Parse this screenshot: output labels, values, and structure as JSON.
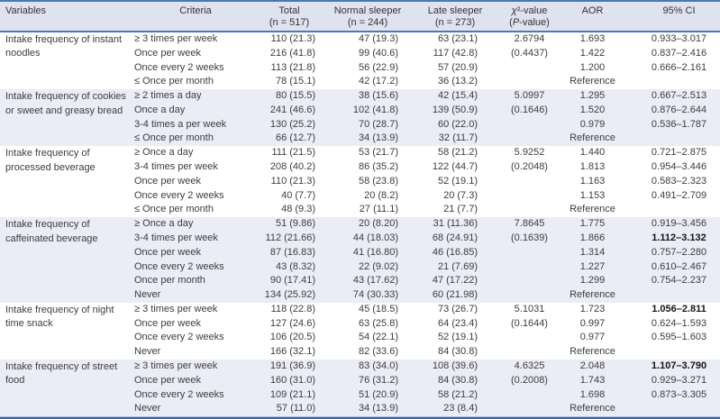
{
  "colors": {
    "accent": "#4a79b8",
    "header_bg": "#dfe3f0",
    "band_bg": "#eaecf6"
  },
  "columns": [
    {
      "label": "Variables",
      "sub": ""
    },
    {
      "label": "Criteria",
      "sub": ""
    },
    {
      "label": "Total",
      "sub": "(n = 517)"
    },
    {
      "label": "Normal sleeper",
      "sub": "(n = 244)"
    },
    {
      "label": "Late sleeper",
      "sub": "(n = 273)"
    },
    {
      "label": "χ²-value",
      "sub": "(P-value)"
    },
    {
      "label": "AOR",
      "sub": ""
    },
    {
      "label": "95% CI",
      "sub": ""
    }
  ],
  "sections": [
    {
      "variable": "Intake frequency of instant noodles",
      "shaded": false,
      "chi2": "2.6794",
      "p_value": "(0.4437)",
      "rows": [
        {
          "criteria": "≥ 3 times per week",
          "total": "110 (21.3)",
          "normal": "47 (19.3)",
          "late": "63 (23.1)",
          "aor": "1.693",
          "ci": "0.933–3.017",
          "ci_bold": false
        },
        {
          "criteria": "Once per week",
          "total": "216 (41.8)",
          "normal": "99 (40.6)",
          "late": "117 (42.8)",
          "aor": "1.422",
          "ci": "0.837–2.416",
          "ci_bold": false
        },
        {
          "criteria": "Once every 2 weeks",
          "total": "113 (21.8)",
          "normal": "56 (22.9)",
          "late": "57 (20.9)",
          "aor": "1.200",
          "ci": "0.666–2.161",
          "ci_bold": false
        },
        {
          "criteria": "≤ Once per month",
          "total": "78 (15.1)",
          "normal": "42 (17.2)",
          "late": "36 (13.2)",
          "aor": "Reference",
          "ci": "",
          "ci_bold": false
        }
      ]
    },
    {
      "variable": "Intake frequency of cookies or sweet and greasy bread",
      "shaded": true,
      "chi2": "5.0997",
      "p_value": "(0.1646)",
      "rows": [
        {
          "criteria": "≥ 2 times a day",
          "total": "80 (15.5)",
          "normal": "38 (15.6)",
          "late": "42 (15.4)",
          "aor": "1.295",
          "ci": "0.667–2.513",
          "ci_bold": false
        },
        {
          "criteria": "Once a day",
          "total": "241 (46.6)",
          "normal": "102 (41.8)",
          "late": "139 (50.9)",
          "aor": "1.520",
          "ci": "0.876–2.644",
          "ci_bold": false
        },
        {
          "criteria": "3-4 times a per week",
          "total": "130 (25.2)",
          "normal": "70 (28.7)",
          "late": "60 (22.0)",
          "aor": "0.979",
          "ci": "0.536–1.787",
          "ci_bold": false
        },
        {
          "criteria": "≤ Once per month",
          "total": "66 (12.7)",
          "normal": "34 (13.9)",
          "late": "32 (11.7)",
          "aor": "Reference",
          "ci": "",
          "ci_bold": false
        }
      ]
    },
    {
      "variable": "Intake frequency of processed beverage",
      "shaded": false,
      "chi2": "5.9252",
      "p_value": "(0.2048)",
      "rows": [
        {
          "criteria": "≥ Once a day",
          "total": "111 (21.5)",
          "normal": "53 (21.7)",
          "late": "58 (21.2)",
          "aor": "1.440",
          "ci": "0.721–2.875",
          "ci_bold": false
        },
        {
          "criteria": "3-4 times per week",
          "total": "208 (40.2)",
          "normal": "86 (35.2)",
          "late": "122 (44.7)",
          "aor": "1.813",
          "ci": "0.954–3.446",
          "ci_bold": false
        },
        {
          "criteria": "Once per week",
          "total": "110 (21.3)",
          "normal": "58 (23.8)",
          "late": "52 (19.1)",
          "aor": "1.163",
          "ci": "0.583–2.323",
          "ci_bold": false
        },
        {
          "criteria": "Once every 2 weeks",
          "total": "40 (7.7)",
          "normal": "20 (8.2)",
          "late": "20 (7.3)",
          "aor": "1.153",
          "ci": "0.491–2.709",
          "ci_bold": false
        },
        {
          "criteria": "≤ Once per month",
          "total": "48 (9.3)",
          "normal": "27 (11.1)",
          "late": "21 (7.7)",
          "aor": "Reference",
          "ci": "",
          "ci_bold": false
        }
      ]
    },
    {
      "variable": "Intake frequency of caffeinated beverage",
      "shaded": true,
      "chi2": "7.8645",
      "p_value": "(0.1639)",
      "rows": [
        {
          "criteria": "≥ Once a day",
          "total": "51 (9.86)",
          "normal": "20 (8.20)",
          "late": "31 (11.36)",
          "aor": "1.775",
          "ci": "0.919–3.456",
          "ci_bold": false
        },
        {
          "criteria": "3-4 times per week",
          "total": "112 (21.66)",
          "normal": "44 (18.03)",
          "late": "68 (24.91)",
          "aor": "1.866",
          "ci": "1.112–3.132",
          "ci_bold": true
        },
        {
          "criteria": "Once per week",
          "total": "87 (16.83)",
          "normal": "41 (16.80)",
          "late": "46 (16.85)",
          "aor": "1.314",
          "ci": "0.757–2.280",
          "ci_bold": false
        },
        {
          "criteria": "Once every 2 weeks",
          "total": "43 (8.32)",
          "normal": "22 (9.02)",
          "late": "21 (7.69)",
          "aor": "1.227",
          "ci": "0.610–2.467",
          "ci_bold": false
        },
        {
          "criteria": "Once per month",
          "total": "90 (17.41)",
          "normal": "43 (17.62)",
          "late": "47 (17.22)",
          "aor": "1.299",
          "ci": "0.754–2.237",
          "ci_bold": false
        },
        {
          "criteria": "Never",
          "total": "134 (25.92)",
          "normal": "74 (30.33)",
          "late": "60 (21.98)",
          "aor": "Reference",
          "ci": "",
          "ci_bold": false
        }
      ]
    },
    {
      "variable": "Intake frequency of night time snack",
      "shaded": false,
      "chi2": "5.1031",
      "p_value": "(0.1644)",
      "rows": [
        {
          "criteria": "≥ 3 times per week",
          "total": "118 (22.8)",
          "normal": "45 (18.5)",
          "late": "73 (26.7)",
          "aor": "1.723",
          "ci": "1.056–2.811",
          "ci_bold": true
        },
        {
          "criteria": "Once per week",
          "total": "127 (24.6)",
          "normal": "63 (25.8)",
          "late": "64 (23.4)",
          "aor": "0.997",
          "ci": "0.624–1.593",
          "ci_bold": false
        },
        {
          "criteria": "Once every 2 weeks",
          "total": "106 (20.5)",
          "normal": "54 (22.1)",
          "late": "52 (19.1)",
          "aor": "0.977",
          "ci": "0.595–1.603",
          "ci_bold": false
        },
        {
          "criteria": "Never",
          "total": "166 (32.1)",
          "normal": "82 (33.6)",
          "late": "84 (30.8)",
          "aor": "Reference",
          "ci": "",
          "ci_bold": false
        }
      ]
    },
    {
      "variable": "Intake frequency of street food",
      "shaded": true,
      "chi2": "4.6325",
      "p_value": "(0.2008)",
      "rows": [
        {
          "criteria": "≥ 3 times per week",
          "total": "191 (36.9)",
          "normal": "83 (34.0)",
          "late": "108 (39.6)",
          "aor": "2.048",
          "ci": "1.107–3.790",
          "ci_bold": true
        },
        {
          "criteria": "Once per week",
          "total": "160 (31.0)",
          "normal": "76 (31.2)",
          "late": "84 (30.8)",
          "aor": "1.743",
          "ci": "0.929–3.271",
          "ci_bold": false
        },
        {
          "criteria": "Once every 2 weeks",
          "total": "109 (21.1)",
          "normal": "51 (20.9)",
          "late": "58 (21.2)",
          "aor": "1.698",
          "ci": "0.873–3.305",
          "ci_bold": false
        },
        {
          "criteria": "Never",
          "total": "57 (11.0)",
          "normal": "34 (13.9)",
          "late": "23 (8.4)",
          "aor": "Reference",
          "ci": "",
          "ci_bold": false
        }
      ]
    }
  ]
}
